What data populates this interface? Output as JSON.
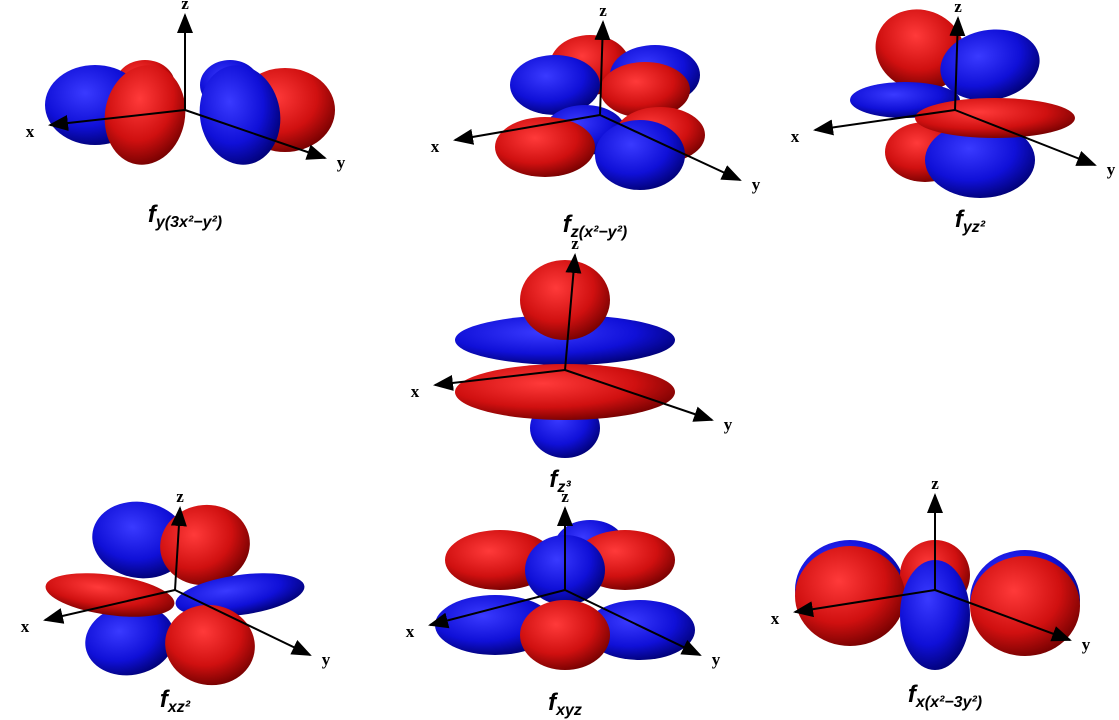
{
  "orbitals": [
    {
      "main": "f",
      "sub": "y(3x²−y²)",
      "axis_labels": [
        "x",
        "y",
        "z"
      ]
    },
    {
      "main": "f",
      "sub": "z(x²−y²)",
      "axis_labels": [
        "x",
        "y",
        "z"
      ]
    },
    {
      "main": "f",
      "sub": "yz²",
      "axis_labels": [
        "x",
        "y",
        "z"
      ]
    },
    {
      "main": "f",
      "sub": "z³",
      "axis_labels": [
        "x",
        "y",
        "z"
      ]
    },
    {
      "main": "f",
      "sub": "xz²",
      "axis_labels": [
        "x",
        "y",
        "z"
      ]
    },
    {
      "main": "f",
      "sub": "xyz",
      "axis_labels": [
        "x",
        "y",
        "z"
      ]
    },
    {
      "main": "f",
      "sub": "x(x²−3y²)",
      "axis_labels": [
        "x",
        "y",
        "z"
      ]
    }
  ]
}
